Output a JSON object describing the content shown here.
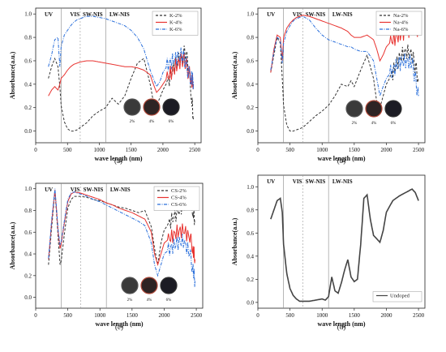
{
  "chart_data": [
    {
      "type": "line",
      "caption": "(a)",
      "xlabel": "wave length (nm)",
      "ylabel": "Absorbance(a.u.)",
      "xlim": [
        0,
        2600
      ],
      "ylim": [
        -0.1,
        1.05
      ],
      "xticks": [
        0,
        500,
        1000,
        1500,
        2000,
        2500
      ],
      "yticks": [
        0.0,
        0.2,
        0.4,
        0.6,
        0.8,
        1.0
      ],
      "regions": [
        "UV",
        "VIS",
        "SW-NIS",
        "LW-NIS"
      ],
      "sample_labels": [
        "2%",
        "4%",
        "6%"
      ],
      "series": [
        {
          "name": "K-2%",
          "color": "#333333",
          "dash": "dash",
          "x": [
            200,
            250,
            300,
            350,
            380,
            400,
            450,
            500,
            550,
            600,
            650,
            700,
            800,
            900,
            1000,
            1100,
            1200,
            1300,
            1400,
            1500,
            1600,
            1700,
            1800,
            1850,
            1900,
            1950,
            2000,
            2100,
            2200,
            2300,
            2350,
            2400,
            2450,
            2480
          ],
          "y": [
            0.45,
            0.55,
            0.62,
            0.55,
            0.38,
            0.22,
            0.08,
            0.02,
            0.0,
            0.0,
            0.01,
            0.03,
            0.07,
            0.13,
            0.17,
            0.2,
            0.28,
            0.23,
            0.3,
            0.45,
            0.58,
            0.62,
            0.4,
            0.25,
            0.22,
            0.28,
            0.35,
            0.45,
            0.58,
            0.62,
            0.68,
            0.55,
            0.3,
            0.1
          ]
        },
        {
          "name": "K-4%",
          "color": "#e8322f",
          "dash": "solid",
          "x": [
            200,
            250,
            300,
            350,
            380,
            400,
            450,
            500,
            550,
            600,
            650,
            700,
            800,
            900,
            1000,
            1100,
            1200,
            1300,
            1400,
            1500,
            1600,
            1700,
            1800,
            1850,
            1900,
            1950,
            2000,
            2100,
            2200,
            2300,
            2350,
            2400,
            2450,
            2480
          ],
          "y": [
            0.3,
            0.35,
            0.38,
            0.35,
            0.4,
            0.45,
            0.48,
            0.52,
            0.55,
            0.57,
            0.58,
            0.59,
            0.6,
            0.6,
            0.59,
            0.58,
            0.57,
            0.56,
            0.55,
            0.55,
            0.54,
            0.52,
            0.48,
            0.4,
            0.33,
            0.36,
            0.4,
            0.48,
            0.55,
            0.62,
            0.6,
            0.5,
            0.45,
            0.4
          ]
        },
        {
          "name": "K-6%",
          "color": "#2a6fdb",
          "dash": "dashdot",
          "x": [
            200,
            250,
            300,
            350,
            380,
            400,
            450,
            500,
            550,
            600,
            650,
            700,
            800,
            900,
            1000,
            1100,
            1200,
            1300,
            1400,
            1500,
            1600,
            1700,
            1800,
            1850,
            1900,
            1950,
            2000,
            2100,
            2200,
            2300,
            2350,
            2400,
            2450,
            2480
          ],
          "y": [
            0.55,
            0.65,
            0.78,
            0.8,
            0.55,
            0.72,
            0.82,
            0.86,
            0.9,
            0.93,
            0.95,
            0.96,
            0.98,
            0.98,
            0.97,
            0.96,
            0.94,
            0.92,
            0.9,
            0.86,
            0.8,
            0.7,
            0.52,
            0.45,
            0.38,
            0.42,
            0.5,
            0.58,
            0.62,
            0.65,
            0.6,
            0.5,
            0.45,
            0.42
          ]
        }
      ]
    },
    {
      "type": "line",
      "caption": "(b)",
      "xlabel": "wave length (nm)",
      "ylabel": "Absorbance(a.u.)",
      "xlim": [
        0,
        2600
      ],
      "ylim": [
        -0.1,
        1.05
      ],
      "xticks": [
        0,
        500,
        1000,
        1500,
        2000,
        2500
      ],
      "yticks": [
        0.0,
        0.2,
        0.4,
        0.6,
        0.8,
        1.0
      ],
      "regions": [
        "UV",
        "VIS",
        "SW-NIS",
        "LW-NIS"
      ],
      "sample_labels": [
        "2%",
        "4%",
        "6%"
      ],
      "series": [
        {
          "name": "Na-2%",
          "color": "#333333",
          "dash": "dash",
          "x": [
            200,
            250,
            300,
            350,
            380,
            400,
            450,
            500,
            550,
            600,
            700,
            800,
            900,
            1000,
            1100,
            1200,
            1300,
            1400,
            1450,
            1500,
            1600,
            1700,
            1800,
            1850,
            1900,
            1950,
            2000,
            2100,
            2200,
            2300,
            2400,
            2450,
            2500
          ],
          "y": [
            0.5,
            0.65,
            0.8,
            0.75,
            0.45,
            0.22,
            0.05,
            0.0,
            0.0,
            0.01,
            0.03,
            0.08,
            0.13,
            0.17,
            0.22,
            0.3,
            0.4,
            0.38,
            0.43,
            0.38,
            0.52,
            0.65,
            0.45,
            0.25,
            0.2,
            0.3,
            0.4,
            0.5,
            0.62,
            0.68,
            0.65,
            0.55,
            0.45
          ]
        },
        {
          "name": "Na-4%",
          "color": "#e8322f",
          "dash": "solid",
          "x": [
            200,
            250,
            300,
            350,
            380,
            400,
            450,
            500,
            550,
            600,
            700,
            800,
            900,
            1000,
            1100,
            1200,
            1300,
            1400,
            1450,
            1500,
            1600,
            1700,
            1800,
            1850,
            1900,
            1950,
            2000,
            2100,
            2200,
            2300,
            2400,
            2450,
            2500
          ],
          "y": [
            0.5,
            0.7,
            0.82,
            0.8,
            0.6,
            0.8,
            0.88,
            0.92,
            0.95,
            0.97,
            0.99,
            0.98,
            0.96,
            0.94,
            0.92,
            0.9,
            0.88,
            0.85,
            0.82,
            0.8,
            0.8,
            0.82,
            0.78,
            0.7,
            0.6,
            0.65,
            0.72,
            0.78,
            0.82,
            0.85,
            0.88,
            0.9,
            0.85
          ]
        },
        {
          "name": "Na-6%",
          "color": "#2a6fdb",
          "dash": "dashdot",
          "x": [
            200,
            250,
            300,
            350,
            380,
            400,
            450,
            500,
            550,
            600,
            700,
            800,
            900,
            1000,
            1100,
            1200,
            1300,
            1400,
            1450,
            1500,
            1600,
            1700,
            1800,
            1850,
            1900,
            1950,
            2000,
            2100,
            2200,
            2300,
            2400,
            2450,
            2500
          ],
          "y": [
            0.52,
            0.68,
            0.8,
            0.78,
            0.58,
            0.75,
            0.85,
            0.9,
            0.94,
            0.96,
            0.98,
            0.95,
            0.88,
            0.82,
            0.78,
            0.76,
            0.74,
            0.72,
            0.72,
            0.7,
            0.68,
            0.68,
            0.6,
            0.45,
            0.3,
            0.38,
            0.45,
            0.52,
            0.58,
            0.6,
            0.58,
            0.45,
            0.3
          ]
        }
      ]
    },
    {
      "type": "line",
      "caption": "(c)",
      "xlabel": "wave length (nm)",
      "ylabel": "Absorbance(a.u.)",
      "xlim": [
        0,
        2600
      ],
      "ylim": [
        -0.1,
        1.05
      ],
      "xticks": [
        0,
        500,
        1000,
        1500,
        2000,
        2500
      ],
      "yticks": [
        0.0,
        0.2,
        0.4,
        0.6,
        0.8,
        1.0
      ],
      "regions": [
        "UV",
        "VIS",
        "SW-NIS",
        "LW-NIS"
      ],
      "sample_labels": [
        "2%",
        "4%",
        "6%"
      ],
      "series": [
        {
          "name": "CS-2%",
          "color": "#333333",
          "dash": "dash",
          "x": [
            200,
            250,
            300,
            350,
            380,
            400,
            450,
            500,
            550,
            600,
            700,
            800,
            900,
            1000,
            1100,
            1200,
            1300,
            1400,
            1500,
            1600,
            1700,
            1800,
            1850,
            1900,
            1950,
            2000,
            2100,
            2200,
            2300,
            2400,
            2450,
            2480
          ],
          "y": [
            0.3,
            0.65,
            0.98,
            0.55,
            0.3,
            0.35,
            0.6,
            0.82,
            0.9,
            0.93,
            0.93,
            0.92,
            0.9,
            0.89,
            0.87,
            0.85,
            0.83,
            0.82,
            0.8,
            0.78,
            0.8,
            0.65,
            0.45,
            0.3,
            0.5,
            0.62,
            0.7,
            0.78,
            0.85,
            0.9,
            0.8,
            0.7
          ]
        },
        {
          "name": "CS-4%",
          "color": "#e8322f",
          "dash": "solid",
          "x": [
            200,
            250,
            300,
            350,
            380,
            400,
            450,
            500,
            550,
            600,
            700,
            800,
            900,
            1000,
            1100,
            1200,
            1300,
            1400,
            1500,
            1600,
            1700,
            1800,
            1850,
            1900,
            1950,
            2000,
            2100,
            2200,
            2300,
            2400,
            2450,
            2480
          ],
          "y": [
            0.35,
            0.7,
            0.99,
            0.6,
            0.45,
            0.5,
            0.7,
            0.88,
            0.95,
            0.97,
            0.96,
            0.94,
            0.92,
            0.9,
            0.87,
            0.85,
            0.82,
            0.8,
            0.78,
            0.75,
            0.72,
            0.6,
            0.4,
            0.3,
            0.4,
            0.5,
            0.55,
            0.6,
            0.62,
            0.55,
            0.45,
            0.35
          ]
        },
        {
          "name": "CS-6%",
          "color": "#2a6fdb",
          "dash": "dashdot",
          "x": [
            200,
            250,
            300,
            350,
            380,
            400,
            450,
            500,
            550,
            600,
            700,
            800,
            900,
            1000,
            1100,
            1200,
            1300,
            1400,
            1500,
            1600,
            1700,
            1800,
            1850,
            1900,
            1950,
            2000,
            2100,
            2200,
            2300,
            2400,
            2450,
            2480
          ],
          "y": [
            0.36,
            0.72,
            1.0,
            0.62,
            0.48,
            0.52,
            0.72,
            0.9,
            0.96,
            0.97,
            0.95,
            0.93,
            0.9,
            0.88,
            0.85,
            0.82,
            0.79,
            0.76,
            0.73,
            0.7,
            0.66,
            0.5,
            0.3,
            0.2,
            0.3,
            0.4,
            0.45,
            0.5,
            0.52,
            0.4,
            0.25,
            0.15
          ]
        }
      ]
    },
    {
      "type": "line",
      "caption": "(d)",
      "xlabel": "wave length (nm)",
      "ylabel": "Absorbance(a.u.)",
      "xlim": [
        0,
        2600
      ],
      "ylim": [
        -0.05,
        1.1
      ],
      "xticks": [
        0,
        500,
        1000,
        1500,
        2000,
        2500
      ],
      "yticks": [
        0.0,
        0.2,
        0.4,
        0.6,
        0.8,
        1.0
      ],
      "regions": [
        "UV",
        "VIS",
        "SW-NIS",
        "LW-NIS"
      ],
      "series": [
        {
          "name": "Undoped",
          "color": "#444444",
          "dash": "solid",
          "x": [
            200,
            250,
            300,
            350,
            380,
            400,
            450,
            500,
            550,
            600,
            650,
            700,
            800,
            900,
            1000,
            1050,
            1100,
            1150,
            1200,
            1250,
            1300,
            1350,
            1400,
            1450,
            1500,
            1550,
            1600,
            1650,
            1700,
            1750,
            1800,
            1850,
            1900,
            1950,
            2000,
            2100,
            2200,
            2300,
            2400,
            2450,
            2500
          ],
          "y": [
            0.72,
            0.8,
            0.88,
            0.9,
            0.78,
            0.5,
            0.25,
            0.12,
            0.06,
            0.03,
            0.01,
            0.01,
            0.01,
            0.02,
            0.03,
            0.02,
            0.05,
            0.22,
            0.1,
            0.08,
            0.17,
            0.28,
            0.37,
            0.22,
            0.18,
            0.2,
            0.5,
            0.9,
            0.93,
            0.72,
            0.58,
            0.55,
            0.52,
            0.62,
            0.78,
            0.88,
            0.92,
            0.95,
            0.98,
            0.95,
            0.88
          ]
        }
      ]
    }
  ]
}
